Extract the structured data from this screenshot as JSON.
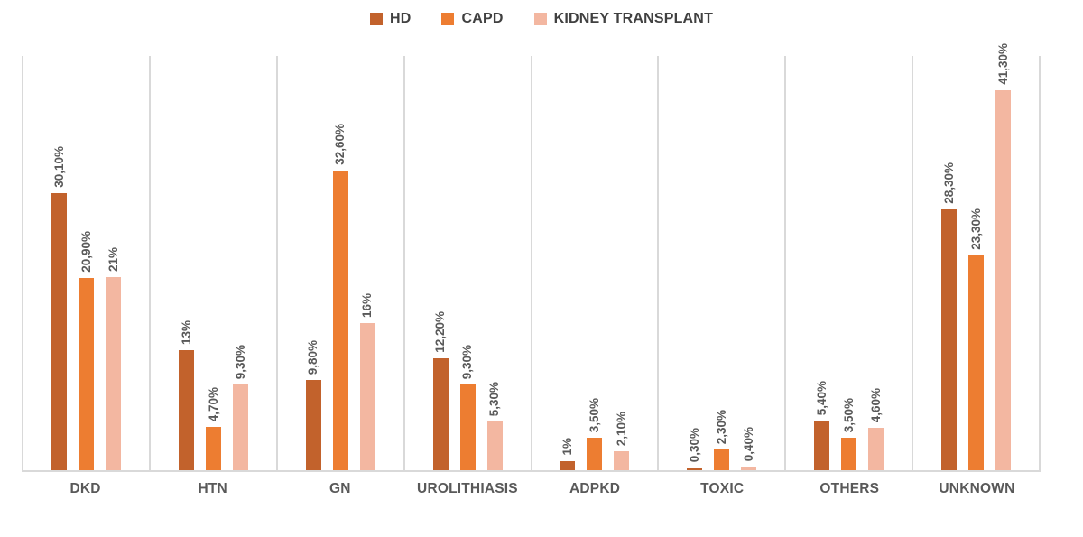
{
  "chart_data": {
    "type": "bar",
    "title": "",
    "xlabel": "",
    "ylabel": "",
    "categories": [
      "DKD",
      "HTN",
      "GN",
      "UROLITHIASIS",
      "ADPKD",
      "TOXIC",
      "OTHERS",
      "UNKNOWN"
    ],
    "series": [
      {
        "name": "HD",
        "color": "#C2622C",
        "values": [
          30.1,
          13,
          9.8,
          12.2,
          1,
          0.3,
          5.4,
          28.3
        ],
        "labels": [
          "30,10%",
          "13%",
          "9,80%",
          "12,20%",
          "1%",
          "0,30%",
          "5,40%",
          "28,30%"
        ]
      },
      {
        "name": "CAPD",
        "color": "#ED7D31",
        "values": [
          20.9,
          4.7,
          32.6,
          9.3,
          3.5,
          2.3,
          3.5,
          23.3
        ],
        "labels": [
          "20,90%",
          "4,70%",
          "32,60%",
          "9,30%",
          "3,50%",
          "2,30%",
          "3,50%",
          "23,30%"
        ]
      },
      {
        "name": "KIDNEY TRANSPLANT",
        "color": "#F3B7A1",
        "values": [
          21,
          9.3,
          16,
          5.3,
          2.1,
          0.4,
          4.6,
          41.3
        ],
        "labels": [
          "21%",
          "9,30%",
          "16%",
          "5,30%",
          "2,10%",
          "0,40%",
          "4,60%",
          "41,30%"
        ]
      }
    ],
    "ylim": [
      0,
      45.2
    ],
    "value_unit": "%",
    "decimal_separator": ",",
    "grid": "vertical-category-separators",
    "legend_position": "top-center",
    "style": {
      "gridline_color": "#D9D9D9",
      "data_label_color": "#595959",
      "category_label_color": "#595959",
      "legend_text_color": "#404040",
      "data_labels_rotated_90": true
    }
  }
}
